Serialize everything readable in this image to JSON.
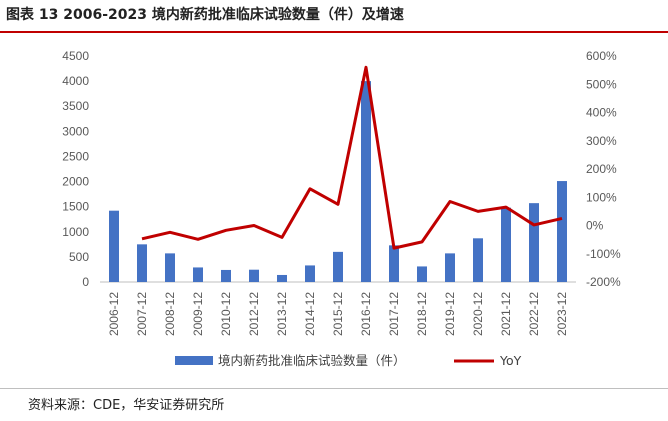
{
  "title": "图表 13 2006-2023  境内新药批准临床试验数量（件）及增速",
  "source": "资料来源：CDE，华安证券研究所",
  "chart_data": {
    "type": "bar",
    "categories": [
      "2006-12",
      "2007-12",
      "2008-12",
      "2009-12",
      "2010-12",
      "2012-12",
      "2013-12",
      "2014-12",
      "2015-12",
      "2016-12",
      "2017-12",
      "2018-12",
      "2019-12",
      "2020-12",
      "2021-12",
      "2022-12",
      "2023-12"
    ],
    "series": [
      {
        "name": "境内新药批准临床试验数量（件）",
        "type": "bar",
        "axis": "left",
        "color": "#4472c4",
        "values": [
          1420,
          750,
          570,
          290,
          240,
          245,
          140,
          330,
          600,
          4000,
          730,
          310,
          570,
          870,
          1480,
          1570,
          2010
        ]
      },
      {
        "name": "YoY",
        "type": "line",
        "axis": "right",
        "color": "#c00000",
        "values": [
          null,
          -47,
          -24,
          -49,
          -17,
          0,
          -42,
          130,
          75,
          560,
          -80,
          -58,
          85,
          50,
          65,
          2,
          25
        ]
      }
    ],
    "left_axis": {
      "ylim": [
        0,
        4500
      ],
      "ticks": [
        "0",
        "500",
        "1000",
        "1500",
        "2000",
        "2500",
        "3000",
        "3500",
        "4000",
        "4500"
      ]
    },
    "right_axis": {
      "ylim": [
        -200,
        600
      ],
      "ticks": [
        "-200%",
        "-100%",
        "0%",
        "100%",
        "200%",
        "300%",
        "400%",
        "500%",
        "600%"
      ]
    },
    "legend_position": "bottom"
  }
}
